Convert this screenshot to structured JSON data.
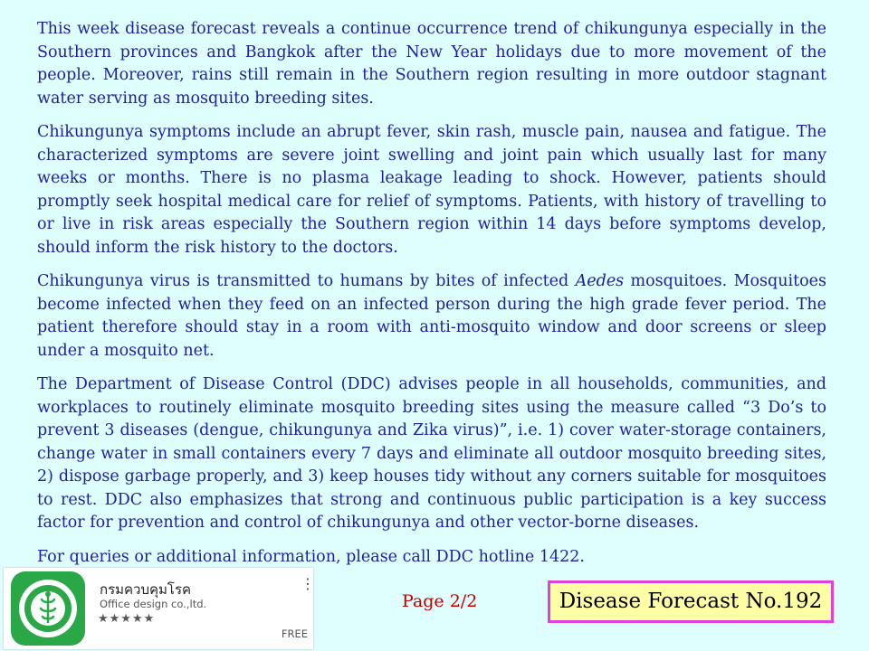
{
  "paragraphs": {
    "p1": "This week disease forecast reveals a continue occurrence trend of chikungunya especially in the Southern provinces and Bangkok after the New Year holidays due to more movement of the people. Moreover, rains still remain in the Southern region resulting in more outdoor stagnant water serving as mosquito breeding sites.",
    "p2": "Chikungunya symptoms include an abrupt fever, skin rash, muscle pain, nausea and fatigue. The characterized symptoms are severe joint swelling and joint pain which usually last for many weeks or months. There is no plasma leakage leading to shock. However, patients should promptly seek hospital medical care for relief of symptoms. Patients, with history of travelling to or live in risk areas especially the Southern region within 14 days before symptoms develop, should inform the risk history to the doctors.",
    "p3_before": "Chikungunya virus is transmitted to humans by bites of infected ",
    "p3_italic": "Aedes",
    "p3_after": " mosquitoes. Mosquitoes become infected when they feed on an infected person during the high grade fever period. The patient therefore should stay in a room with anti-mosquito window and door screens or sleep under a mosquito net.",
    "p4": "The Department of Disease Control (DDC) advises people in all households, communities, and workplaces to routinely eliminate mosquito breeding sites using the measure called “3 Do’s to prevent 3 diseases (dengue, chikungunya and Zika virus)”, i.e. 1) cover water-storage containers, change water in small containers every 7 days and eliminate all outdoor mosquito breeding sites, 2) dispose garbage properly, and 3) keep houses tidy without any corners suitable for mosquitoes to rest. DDC also emphasizes that strong and continuous public participation is a key success factor for prevention and control of chikungunya and other vector-borne diseases.",
    "p5": "For queries or additional information, please call DDC hotline 1422."
  },
  "app": {
    "name": "กรมควบคุมโรค",
    "developer": "Office design co.,ltd.",
    "stars": "★★★★★",
    "menu_icon": "more-vert-icon",
    "price": "FREE",
    "icon": "ddc-logo-icon",
    "icon_color": "#2aa848"
  },
  "footer": {
    "page": "Page 2/2",
    "forecast": "Disease Forecast No.192"
  },
  "colors": {
    "background": "#dffefe",
    "body_text": "#1f1f9a",
    "page_text": "#c00000",
    "box_fill": "#ffffa6",
    "box_border": "#e040e0"
  }
}
